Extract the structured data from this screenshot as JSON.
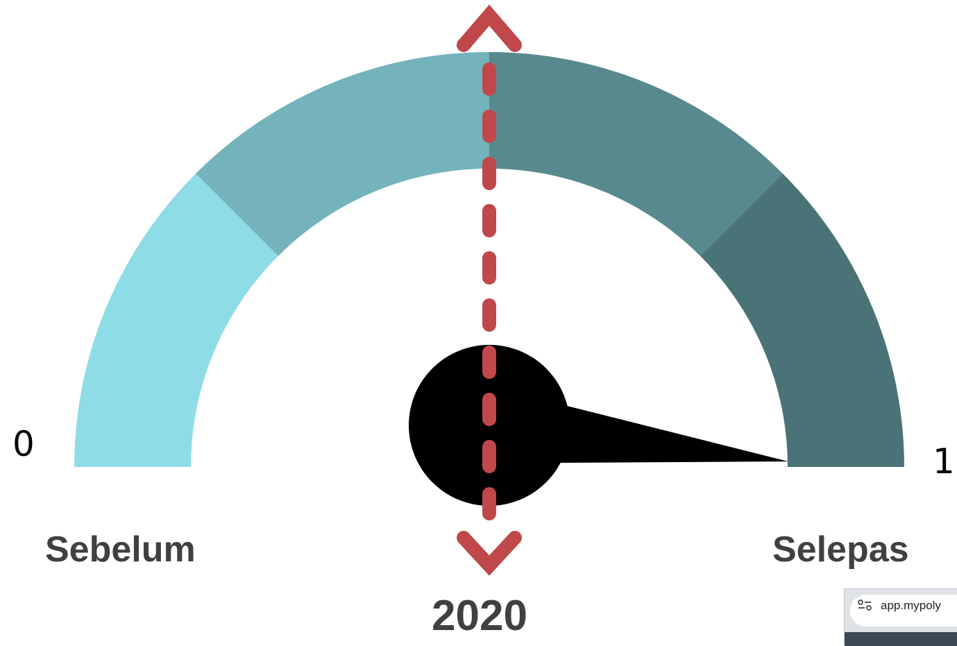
{
  "gauge": {
    "min_label": "0",
    "max_label": "1",
    "value": 0.975,
    "segment_colors": [
      "#8edce6",
      "#74b3bb",
      "#58898e",
      "#4a7377"
    ],
    "needle_color": "#000000",
    "arrow_color": "#c0484a"
  },
  "labels": {
    "before": "Sebelum",
    "after": "Selepas",
    "year": "2020"
  },
  "browser": {
    "url_fragment": "app.mypoly",
    "settings_icon": "tune-icon"
  }
}
